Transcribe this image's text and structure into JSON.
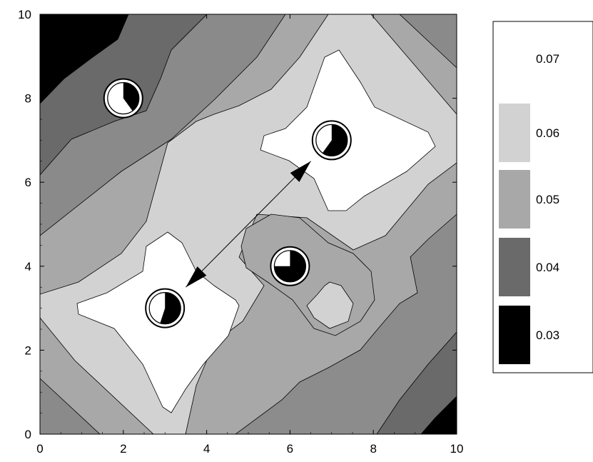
{
  "chart_data": {
    "type": "heatmap",
    "subtype": "contour",
    "title": "",
    "xlabel": "",
    "ylabel": "",
    "xlim": [
      0,
      10
    ],
    "ylim": [
      0,
      10
    ],
    "x_ticks": [
      "0",
      "2",
      "4",
      "6",
      "8",
      "10"
    ],
    "y_ticks": [
      "0",
      "2",
      "4",
      "6",
      "8",
      "10"
    ],
    "grid": false,
    "legend_position": "right",
    "levels": [
      {
        "label": "0.07",
        "color": "#ffffff"
      },
      {
        "label": "0.06",
        "color": "#d2d2d2"
      },
      {
        "label": "0.05",
        "color": "#a8a8a8"
      },
      {
        "label": "0.04",
        "color": "#6a6a6a"
      },
      {
        "label": "0.03",
        "color": "#000000"
      }
    ],
    "markers": [
      {
        "x": 2,
        "y": 8,
        "pie_fraction": 0.4
      },
      {
        "x": 7,
        "y": 7,
        "pie_fraction": 0.6
      },
      {
        "x": 6,
        "y": 4,
        "pie_fraction": 0.75
      },
      {
        "x": 3,
        "y": 3,
        "pie_fraction": 0.55
      }
    ],
    "arrow": {
      "from": [
        3.5,
        3.5
      ],
      "to": [
        6.5,
        6.5
      ],
      "double_headed": true
    }
  }
}
